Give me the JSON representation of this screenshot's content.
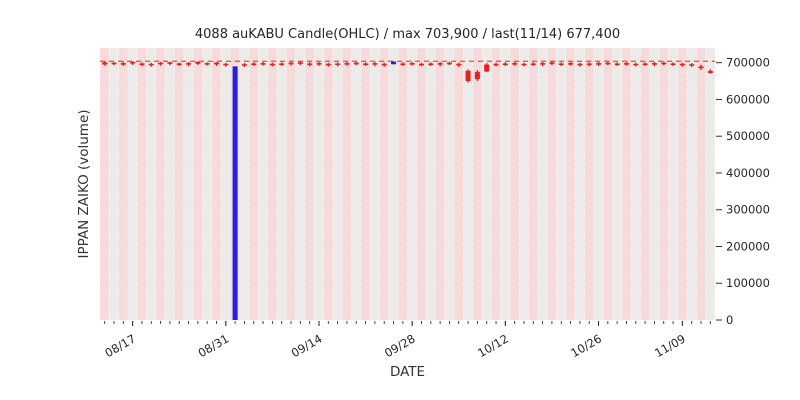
{
  "chart_data": {
    "type": "candlestick",
    "title": "4088 auKABU Candle(OHLC) / max 703,900 / last(11/14) 677,400",
    "xlabel": "DATE",
    "ylabel": "IPPAN ZAIKO (volume)",
    "ylim": [
      0,
      740000
    ],
    "yticks": [
      0,
      100000,
      200000,
      300000,
      400000,
      500000,
      600000,
      700000
    ],
    "xticks": [
      "08/17",
      "08/31",
      "09/14",
      "09/28",
      "10/12",
      "10/26",
      "11/09"
    ],
    "max_line": 703900,
    "last_date": "11/14",
    "last_value": 677400,
    "grid": "vertical-day-bands",
    "legend": "none",
    "colors": {
      "up": "#e32222",
      "down": "#2222e3",
      "max_line": "#ff4444",
      "band_a": "#f5dbdb",
      "band_b": "#edeaea",
      "tick": "#333333",
      "text": "#262626"
    },
    "candles_format": [
      "date",
      "open",
      "high",
      "low",
      "close"
    ],
    "candles": [
      [
        "08/14",
        695000,
        703900,
        692000,
        701000
      ],
      [
        "08/15",
        697000,
        702000,
        693000,
        700000
      ],
      [
        "08/16",
        696000,
        703000,
        691000,
        699000
      ],
      [
        "08/17",
        698000,
        703900,
        694000,
        702000
      ],
      [
        "08/18",
        695000,
        701000,
        690000,
        698000
      ],
      [
        "08/21",
        694000,
        700000,
        689000,
        697000
      ],
      [
        "08/22",
        696000,
        702000,
        692000,
        700000
      ],
      [
        "08/23",
        697000,
        703000,
        693000,
        701000
      ],
      [
        "08/24",
        695000,
        700000,
        691000,
        698000
      ],
      [
        "08/25",
        696000,
        702000,
        690000,
        699000
      ],
      [
        "08/28",
        697000,
        703900,
        694000,
        702000
      ],
      [
        "08/29",
        695000,
        701000,
        692000,
        699000
      ],
      [
        "08/30",
        696000,
        702000,
        691000,
        700000
      ],
      [
        "08/31",
        694000,
        700000,
        689000,
        697000
      ],
      [
        "09/01",
        690000,
        690000,
        0,
        0
      ],
      [
        "09/04",
        693000,
        699000,
        688000,
        696000
      ],
      [
        "09/05",
        695000,
        701000,
        691000,
        698000
      ],
      [
        "09/06",
        696000,
        702000,
        692000,
        699000
      ],
      [
        "09/07",
        694000,
        700000,
        690000,
        697000
      ],
      [
        "09/08",
        695000,
        701000,
        691000,
        698000
      ],
      [
        "09/11",
        696000,
        703000,
        692000,
        700000
      ],
      [
        "09/12",
        697000,
        703900,
        693000,
        701000
      ],
      [
        "09/13",
        695000,
        701000,
        690000,
        698000
      ],
      [
        "09/14",
        696000,
        702000,
        691000,
        699000
      ],
      [
        "09/15",
        694000,
        700000,
        689000,
        697000
      ],
      [
        "09/18",
        695000,
        701000,
        690000,
        698000
      ],
      [
        "09/19",
        696000,
        702000,
        692000,
        699000
      ],
      [
        "09/20",
        697000,
        703000,
        693000,
        700000
      ],
      [
        "09/21",
        695000,
        701000,
        691000,
        698000
      ],
      [
        "09/22",
        696000,
        702000,
        690000,
        699000
      ],
      [
        "09/25",
        694000,
        700000,
        689000,
        697000
      ],
      [
        "09/26",
        703000,
        703900,
        695000,
        696000
      ],
      [
        "09/27",
        695000,
        701000,
        691000,
        698000
      ],
      [
        "09/28",
        696000,
        702000,
        692000,
        699000
      ],
      [
        "09/29",
        694000,
        700000,
        690000,
        697000
      ],
      [
        "10/02",
        695000,
        701000,
        691000,
        698000
      ],
      [
        "10/03",
        696000,
        702000,
        690000,
        699000
      ],
      [
        "10/04",
        697000,
        703000,
        693000,
        700000
      ],
      [
        "10/05",
        695000,
        700000,
        688000,
        697000
      ],
      [
        "10/06",
        650000,
        682000,
        646000,
        678000
      ],
      [
        "10/09",
        655000,
        680000,
        650000,
        675000
      ],
      [
        "10/10",
        676000,
        699000,
        674000,
        695000
      ],
      [
        "10/11",
        694000,
        700000,
        690000,
        697000
      ],
      [
        "10/12",
        695000,
        701000,
        691000,
        698000
      ],
      [
        "10/13",
        696000,
        702000,
        692000,
        699000
      ],
      [
        "10/16",
        694000,
        700000,
        690000,
        697000
      ],
      [
        "10/17",
        695000,
        701000,
        691000,
        698000
      ],
      [
        "10/18",
        696000,
        702000,
        690000,
        699000
      ],
      [
        "10/19",
        697000,
        703900,
        693000,
        701000
      ],
      [
        "10/20",
        695000,
        701000,
        691000,
        698000
      ],
      [
        "10/23",
        696000,
        702000,
        692000,
        699000
      ],
      [
        "10/24",
        694000,
        700000,
        689000,
        697000
      ],
      [
        "10/25",
        695000,
        701000,
        690000,
        698000
      ],
      [
        "10/26",
        696000,
        702000,
        691000,
        699000
      ],
      [
        "10/27",
        697000,
        703000,
        693000,
        700000
      ],
      [
        "10/30",
        695000,
        701000,
        691000,
        698000
      ],
      [
        "10/31",
        696000,
        702000,
        692000,
        699000
      ],
      [
        "11/01",
        694000,
        700000,
        690000,
        697000
      ],
      [
        "11/02",
        695000,
        701000,
        691000,
        698000
      ],
      [
        "11/06",
        696000,
        702000,
        690000,
        699000
      ],
      [
        "11/07",
        697000,
        703000,
        693000,
        700000
      ],
      [
        "11/08",
        695000,
        701000,
        691000,
        698000
      ],
      [
        "11/09",
        694000,
        700000,
        689000,
        697000
      ],
      [
        "11/10",
        693000,
        699000,
        688000,
        696000
      ],
      [
        "11/13",
        685000,
        695000,
        680000,
        690000
      ],
      [
        "11/14",
        672000,
        682000,
        670000,
        677400
      ]
    ]
  }
}
